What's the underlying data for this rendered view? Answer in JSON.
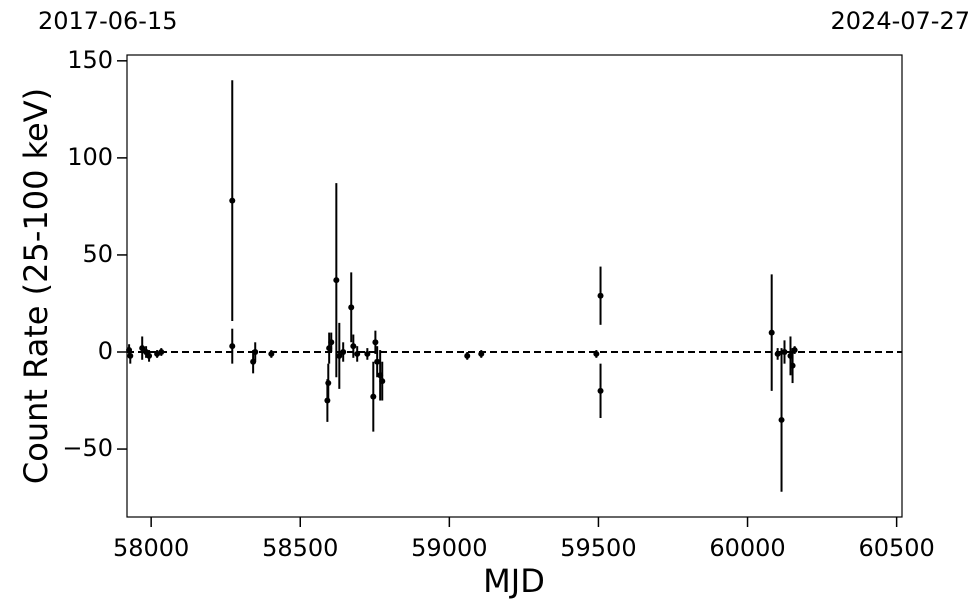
{
  "chart_data": {
    "type": "errorbar",
    "annotations": [
      "2017-06-15",
      "2024-07-27"
    ],
    "xlabel": "MJD",
    "ylabel": "Count Rate (25-100 keV)",
    "xlim": [
      57919,
      60518
    ],
    "ylim": [
      -85,
      153
    ],
    "xticks": [
      58000,
      58500,
      59000,
      59500,
      60000,
      60500
    ],
    "yticks": [
      {
        "value": -50,
        "label": "−50"
      },
      0,
      50,
      100,
      150
    ],
    "hline": 0,
    "series": [
      {
        "color": "#000000",
        "x": [
          57926,
          57930,
          57970,
          57983,
          57993,
          58020,
          58034,
          58272,
          58272,
          58342,
          58349,
          58403,
          58591,
          58594,
          58597,
          58604,
          58621,
          58631,
          58644,
          58671,
          58678,
          58691,
          58725,
          58745,
          58752,
          58758,
          58768,
          58775,
          59060,
          59107,
          59493,
          59507,
          59507,
          60081,
          60101,
          60114,
          60124,
          60144,
          60151,
          60158
        ],
        "values": [
          1,
          -2,
          2,
          0,
          -2,
          -1,
          0,
          78,
          3,
          -5,
          0,
          -1,
          -25,
          -16,
          2,
          5,
          37,
          -2,
          0,
          23,
          3,
          -1,
          -1,
          -23,
          5,
          -5,
          -12,
          -15,
          -2,
          -1,
          -1,
          29,
          -20,
          10,
          -1,
          -35,
          0,
          -2,
          -7,
          1
        ],
        "errors": [
          3,
          4,
          6,
          3,
          3,
          2,
          2,
          62,
          9,
          6,
          5,
          2,
          11,
          10,
          8,
          5,
          50,
          17,
          5,
          18,
          6,
          4,
          3,
          18,
          6,
          8,
          13,
          10,
          2,
          2,
          2,
          15,
          14,
          30,
          3,
          37,
          6,
          10,
          9,
          2
        ]
      }
    ]
  }
}
